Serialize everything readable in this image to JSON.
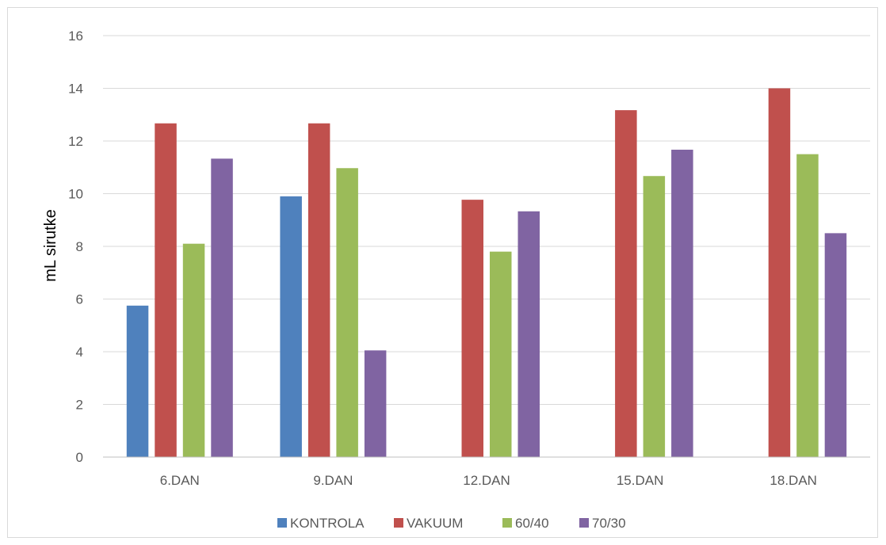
{
  "chart_data": {
    "type": "bar",
    "title": "",
    "xlabel": "",
    "ylabel": "mL sirutke",
    "ylim": [
      0,
      16
    ],
    "yticks": [
      "0",
      "2",
      "4",
      "6",
      "8",
      "10",
      "12",
      "14",
      "16"
    ],
    "grid": true,
    "legend_position": "bottom",
    "categories": [
      "6.DAN",
      "9.DAN",
      "12.DAN",
      "15.DAN",
      "18.DAN"
    ],
    "series": [
      {
        "name": "KONTROLA",
        "color": "#4f81bd",
        "values": [
          5.75,
          9.9,
          0,
          0,
          0
        ]
      },
      {
        "name": "VAKUUM",
        "color": "#c0504d",
        "values": [
          12.67,
          12.67,
          9.77,
          13.17,
          14.0
        ]
      },
      {
        "name": "60/40",
        "color": "#9bbb59",
        "values": [
          8.1,
          10.97,
          7.8,
          10.67,
          11.5
        ]
      },
      {
        "name": "70/30",
        "color": "#8064a2",
        "values": [
          11.33,
          4.05,
          9.33,
          11.67,
          8.5
        ]
      }
    ]
  }
}
